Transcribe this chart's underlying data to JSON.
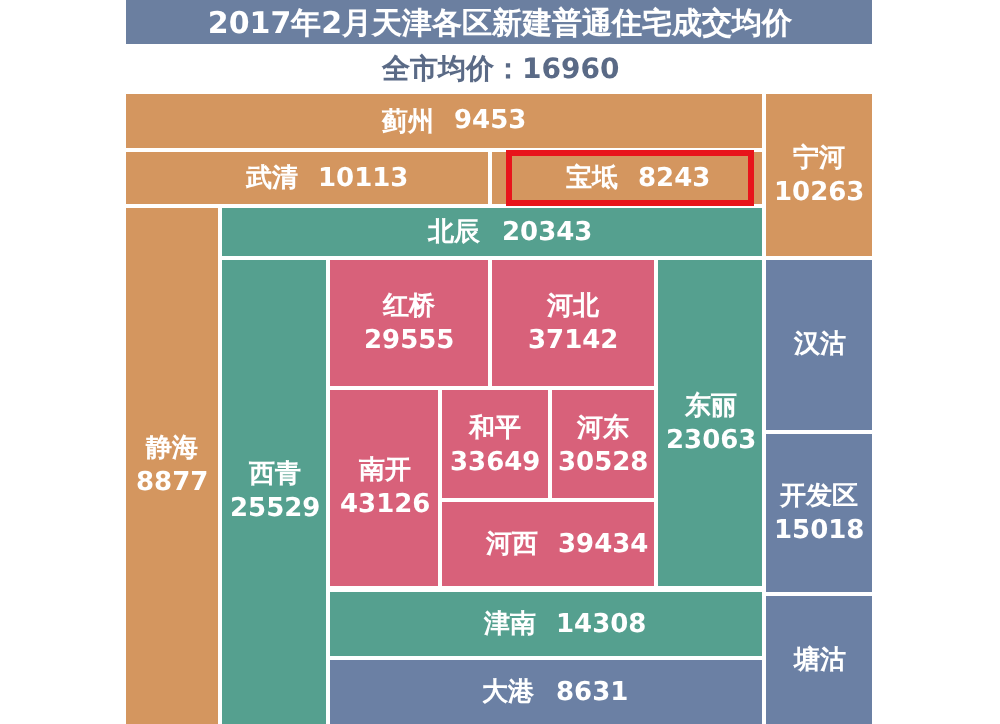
{
  "chart_data": {
    "type": "other",
    "data_labels": true,
    "title": "2017年2月天津各区新建普通住宅成交均价",
    "subtitle": "全市均价：16960",
    "categories": [
      "蓟州",
      "武清",
      "宝坻",
      "宁河",
      "静海",
      "北辰",
      "西青",
      "红桥",
      "河北",
      "和平",
      "河东",
      "南开",
      "河西",
      "东丽",
      "汉沽",
      "开发区",
      "塘沽",
      "津南",
      "大港"
    ],
    "values": [
      9453,
      10113,
      8243,
      10263,
      8877,
      20343,
      25529,
      29555,
      37142,
      33649,
      30528,
      43126,
      39434,
      23063,
      null,
      15018,
      null,
      14308,
      8631
    ],
    "colors": [
      "#d4965f",
      "#d4965f",
      "#d4965f",
      "#d4965f",
      "#d4965f",
      "#55a08f",
      "#55a08f",
      "#d8617a",
      "#d8617a",
      "#d8617a",
      "#d8617a",
      "#d8617a",
      "#d8617a",
      "#55a08f",
      "#6b80a4",
      "#6b80a4",
      "#6b80a4",
      "#55a08f",
      "#6b80a4"
    ]
  }
}
